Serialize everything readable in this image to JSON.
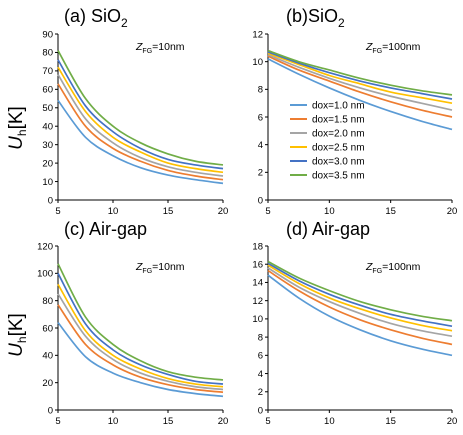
{
  "figure": {
    "ylabel": {
      "main": "U",
      "sub": "h",
      "unit": "[K]"
    }
  },
  "legend": {
    "entries": [
      "dox=1.0 nm",
      "dox=1.5 nm",
      "dox=2.0 nm",
      "dox=2.5 nm",
      "dox=3.0 nm",
      "dox=3.5 nm"
    ]
  },
  "colors": {
    "series": [
      "#5b9bd5",
      "#ed7d31",
      "#a5a5a5",
      "#ffc000",
      "#4472c4",
      "#70ad47"
    ],
    "axis": "#000000"
  },
  "chart_data": [
    {
      "type": "line",
      "title": {
        "prefix": "(a) SiO",
        "sub": "2"
      },
      "annotation": {
        "main": "Z",
        "sub": "FG",
        "rest": "=10nm"
      },
      "x": [
        5,
        7.5,
        10,
        12.5,
        15,
        17.5,
        20
      ],
      "xticks": [
        5,
        10,
        15,
        20
      ],
      "xlim": [
        5,
        20
      ],
      "ylim": [
        0,
        90
      ],
      "yticks": [
        0,
        10,
        20,
        30,
        40,
        50,
        60,
        70,
        80,
        90
      ],
      "series": [
        {
          "name": "dox=1.0 nm",
          "values": [
            54,
            34,
            24,
            17.5,
            13.5,
            11,
            9
          ]
        },
        {
          "name": "dox=1.5 nm",
          "values": [
            63,
            40,
            28,
            21,
            16,
            13,
            11
          ]
        },
        {
          "name": "dox=2.0 nm",
          "values": [
            68,
            44,
            31,
            23,
            18,
            15,
            13
          ]
        },
        {
          "name": "dox=2.5 nm",
          "values": [
            72,
            48,
            34,
            26,
            20,
            17,
            15
          ]
        },
        {
          "name": "dox=3.0 nm",
          "values": [
            76,
            51,
            37,
            28,
            22,
            19,
            17
          ]
        },
        {
          "name": "dox=3.5 nm",
          "values": [
            81,
            55,
            40,
            31,
            25,
            21,
            19
          ]
        }
      ]
    },
    {
      "type": "line",
      "title": {
        "prefix": "(b)SiO",
        "sub": "2"
      },
      "annotation": {
        "main": "Z",
        "sub": "FG",
        "rest": "=100nm"
      },
      "x": [
        5,
        7.5,
        10,
        12.5,
        15,
        17.5,
        20
      ],
      "xticks": [
        5,
        10,
        15,
        20
      ],
      "xlim": [
        5,
        20
      ],
      "ylim": [
        0,
        12
      ],
      "yticks": [
        0,
        2,
        4,
        6,
        8,
        10,
        12
      ],
      "legend_position": "center-left",
      "series": [
        {
          "name": "dox=1.0 nm",
          "values": [
            10.2,
            9.1,
            8.1,
            7.2,
            6.4,
            5.7,
            5.1
          ]
        },
        {
          "name": "dox=1.5 nm",
          "values": [
            10.4,
            9.4,
            8.6,
            7.8,
            7.1,
            6.5,
            6.0
          ]
        },
        {
          "name": "dox=2.0 nm",
          "values": [
            10.5,
            9.6,
            8.8,
            8.1,
            7.5,
            7.0,
            6.5
          ]
        },
        {
          "name": "dox=2.5 nm",
          "values": [
            10.6,
            9.8,
            9.0,
            8.4,
            7.8,
            7.4,
            7.0
          ]
        },
        {
          "name": "dox=3.0 nm",
          "values": [
            10.7,
            9.9,
            9.2,
            8.6,
            8.1,
            7.7,
            7.3
          ]
        },
        {
          "name": "dox=3.5 nm",
          "values": [
            10.8,
            10.0,
            9.4,
            8.8,
            8.3,
            7.9,
            7.6
          ]
        }
      ]
    },
    {
      "type": "line",
      "title": {
        "prefix": "(c) Air-gap",
        "sub": ""
      },
      "annotation": {
        "main": "Z",
        "sub": "FG",
        "rest": "=10nm"
      },
      "x": [
        5,
        7.5,
        10,
        12.5,
        15,
        17.5,
        20
      ],
      "xticks": [
        5,
        10,
        15,
        20
      ],
      "xlim": [
        5,
        20
      ],
      "ylim": [
        0,
        120
      ],
      "yticks": [
        0,
        20,
        40,
        60,
        80,
        100,
        120
      ],
      "series": [
        {
          "name": "dox=1.0 nm",
          "values": [
            64,
            39,
            27,
            20,
            15,
            12,
            10
          ]
        },
        {
          "name": "dox=1.5 nm",
          "values": [
            77,
            48,
            33,
            24,
            18.5,
            15,
            13
          ]
        },
        {
          "name": "dox=2.0 nm",
          "values": [
            85,
            54,
            37,
            27,
            21,
            17,
            15
          ]
        },
        {
          "name": "dox=2.5 nm",
          "values": [
            92,
            58,
            40,
            30,
            23,
            19,
            17
          ]
        },
        {
          "name": "dox=3.0 nm",
          "values": [
            100,
            63,
            44,
            33,
            26,
            21,
            19
          ]
        },
        {
          "name": "dox=3.5 nm",
          "values": [
            107,
            68,
            48,
            36,
            28,
            24,
            22
          ]
        }
      ]
    },
    {
      "type": "line",
      "title": {
        "prefix": "(d) Air-gap",
        "sub": ""
      },
      "annotation": {
        "main": "Z",
        "sub": "FG",
        "rest": "=100nm"
      },
      "x": [
        5,
        7.5,
        10,
        12.5,
        15,
        17.5,
        20
      ],
      "xticks": [
        5,
        10,
        15,
        20
      ],
      "xlim": [
        5,
        20
      ],
      "ylim": [
        0,
        18
      ],
      "yticks": [
        0,
        2,
        4,
        6,
        8,
        10,
        12,
        14,
        16,
        18
      ],
      "series": [
        {
          "name": "dox=1.0 nm",
          "values": [
            14.8,
            12.3,
            10.3,
            8.8,
            7.6,
            6.7,
            6.0
          ]
        },
        {
          "name": "dox=1.5 nm",
          "values": [
            15.3,
            13.1,
            11.3,
            9.9,
            8.8,
            7.9,
            7.2
          ]
        },
        {
          "name": "dox=2.0 nm",
          "values": [
            15.6,
            13.5,
            11.9,
            10.6,
            9.5,
            8.7,
            8.1
          ]
        },
        {
          "name": "dox=2.5 nm",
          "values": [
            15.9,
            13.9,
            12.3,
            11.1,
            10.1,
            9.3,
            8.7
          ]
        },
        {
          "name": "dox=3.0 nm",
          "values": [
            16.1,
            14.2,
            12.7,
            11.5,
            10.5,
            9.8,
            9.2
          ]
        },
        {
          "name": "dox=3.5 nm",
          "values": [
            16.3,
            14.5,
            13.1,
            11.9,
            11.0,
            10.3,
            9.8
          ]
        }
      ]
    }
  ]
}
